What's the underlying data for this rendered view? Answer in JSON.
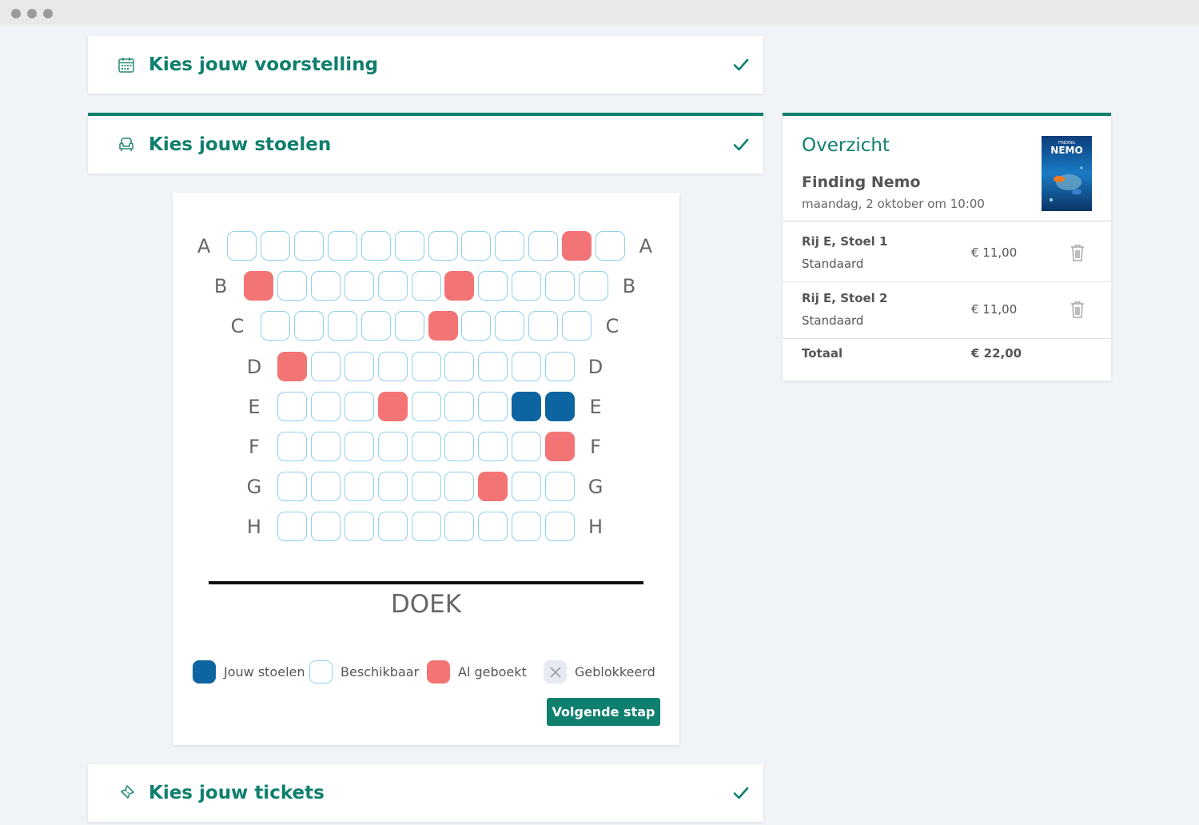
{
  "steps": {
    "show": {
      "title": "Kies jouw voorstelling",
      "icon": "calendar-icon"
    },
    "seats": {
      "title": "Kies jouw stoelen",
      "icon": "armchair-icon"
    },
    "tickets": {
      "title": "Kies jouw tickets",
      "icon": "ticket-icon"
    }
  },
  "seatmap": {
    "rows": [
      {
        "label": "A",
        "seats": [
          "a",
          "a",
          "a",
          "a",
          "a",
          "a",
          "a",
          "a",
          "a",
          "a",
          "b",
          "a"
        ]
      },
      {
        "label": "B",
        "seats": [
          "b",
          "a",
          "a",
          "a",
          "a",
          "a",
          "b",
          "a",
          "a",
          "a",
          "a"
        ]
      },
      {
        "label": "C",
        "seats": [
          "a",
          "a",
          "a",
          "a",
          "a",
          "b",
          "a",
          "a",
          "a",
          "a"
        ]
      },
      {
        "label": "D",
        "seats": [
          "b",
          "a",
          "a",
          "a",
          "a",
          "a",
          "a",
          "a",
          "a"
        ]
      },
      {
        "label": "E",
        "seats": [
          "a",
          "a",
          "a",
          "b",
          "a",
          "a",
          "a",
          "m",
          "m"
        ]
      },
      {
        "label": "F",
        "seats": [
          "a",
          "a",
          "a",
          "a",
          "a",
          "a",
          "a",
          "a",
          "b"
        ]
      },
      {
        "label": "G",
        "seats": [
          "a",
          "a",
          "a",
          "a",
          "a",
          "a",
          "b",
          "a",
          "a"
        ]
      },
      {
        "label": "H",
        "seats": [
          "a",
          "a",
          "a",
          "a",
          "a",
          "a",
          "a",
          "a",
          "a"
        ]
      }
    ],
    "screen_label": "DOEK"
  },
  "legend": {
    "mine": "Jouw stoelen",
    "available": "Beschikbaar",
    "booked": "Al geboekt",
    "blocked": "Geblokkeerd"
  },
  "next_button": "Volgende stap",
  "overview": {
    "title": "Overzicht",
    "movie": "Finding Nemo",
    "datetime": "maandag, 2 oktober om 10:00",
    "poster_text": "NEMO",
    "poster_small": "FINDING",
    "tickets": [
      {
        "seat": "Rij E, Stoel 1",
        "type": "Standaard",
        "price": "€ 11,00"
      },
      {
        "seat": "Rij E, Stoel 2",
        "type": "Standaard",
        "price": "€ 11,00"
      }
    ],
    "total_label": "Totaal",
    "total_value": "€ 22,00"
  },
  "colors": {
    "accent": "#0f7f6e",
    "mine": "#0c64a0",
    "booked": "#f27474",
    "available_border": "#8fd0ea"
  }
}
